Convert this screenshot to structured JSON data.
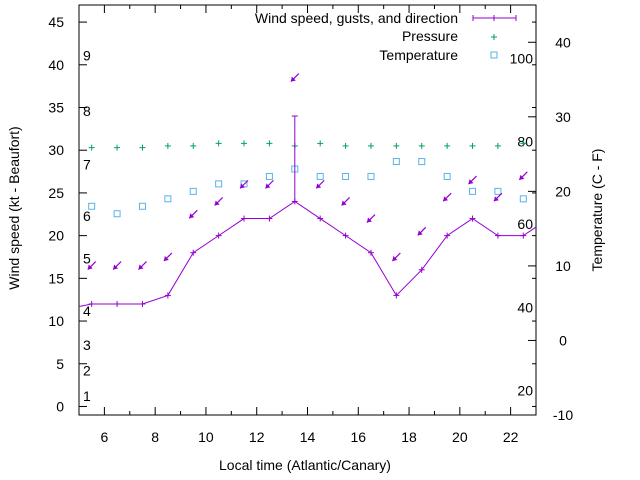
{
  "chart_data": {
    "type": "line",
    "xlabel": "Local time (Atlantic/Canary)",
    "ylabel": "Wind speed (kt - Beaufort)",
    "y2label": "Temperature (C - F)",
    "xlim": [
      5,
      23
    ],
    "ylim": [
      -1,
      47
    ],
    "y2lim": [
      -10,
      45
    ],
    "x_ticks": [
      6,
      8,
      10,
      12,
      14,
      16,
      18,
      20,
      22
    ],
    "y_ticks": [
      0,
      5,
      10,
      15,
      20,
      25,
      30,
      35,
      40,
      45
    ],
    "y2_ticks": [
      -10,
      0,
      10,
      20,
      30,
      40
    ],
    "beaufort_labels": [
      {
        "label": "1",
        "y": 1.2
      },
      {
        "label": "2",
        "y": 4.2
      },
      {
        "label": "3",
        "y": 7.2
      },
      {
        "label": "4",
        "y": 11.2
      },
      {
        "label": "5",
        "y": 17.3
      },
      {
        "label": "6",
        "y": 22.3
      },
      {
        "label": "7",
        "y": 28.3
      },
      {
        "label": "8",
        "y": 34.6
      },
      {
        "label": "9",
        "y": 41.1
      }
    ],
    "fahrenheit_labels": [
      {
        "label": "20",
        "y2": -6.7
      },
      {
        "label": "40",
        "y2": 4.4
      },
      {
        "label": "60",
        "y2": 15.6
      },
      {
        "label": "80",
        "y2": 26.7
      },
      {
        "label": "100",
        "y2": 37.8
      }
    ],
    "legend_position": "top-right",
    "series": [
      {
        "name": "Wind speed, gusts, and direction",
        "color": "#9400d3",
        "x": [
          5,
          5.5,
          6.5,
          7.5,
          8.5,
          9.5,
          10.5,
          11.5,
          12.5,
          13.5,
          14.5,
          15.5,
          16.5,
          17.5,
          18.5,
          19.5,
          20.5,
          21.5,
          22.5,
          23
        ],
        "y": [
          11.7,
          12,
          12,
          12,
          13,
          18,
          20,
          22,
          22,
          24,
          22,
          20,
          18,
          13,
          16,
          20,
          22,
          20,
          20,
          21
        ],
        "gusts": [
          {
            "x": 13.5,
            "y": 34
          }
        ],
        "direction_arrows": [
          {
            "x": 5.5,
            "y": 16.5
          },
          {
            "x": 6.5,
            "y": 16.5
          },
          {
            "x": 7.5,
            "y": 16.5
          },
          {
            "x": 8.5,
            "y": 17.5
          },
          {
            "x": 9.5,
            "y": 22.5
          },
          {
            "x": 10.5,
            "y": 24
          },
          {
            "x": 11.5,
            "y": 26
          },
          {
            "x": 12.5,
            "y": 26
          },
          {
            "x": 13.5,
            "y": 38.5
          },
          {
            "x": 14.5,
            "y": 26
          },
          {
            "x": 15.5,
            "y": 24
          },
          {
            "x": 16.5,
            "y": 22
          },
          {
            "x": 17.5,
            "y": 17.5
          },
          {
            "x": 18.5,
            "y": 20.5
          },
          {
            "x": 19.5,
            "y": 24.5
          },
          {
            "x": 20.5,
            "y": 26.5
          },
          {
            "x": 21.5,
            "y": 24.5
          },
          {
            "x": 22.5,
            "y": 27
          }
        ]
      },
      {
        "name": "Pressure",
        "color": "#009e73",
        "x": [
          5.5,
          6.5,
          7.5,
          8.5,
          9.5,
          10.5,
          11.5,
          12.5,
          13.5,
          14.5,
          15.5,
          16.5,
          17.5,
          18.5,
          19.5,
          20.5,
          21.5,
          22.5
        ],
        "y": [
          30.3,
          30.3,
          30.3,
          30.5,
          30.5,
          30.8,
          30.8,
          30.8,
          30.5,
          30.8,
          30.5,
          30.5,
          30.5,
          30.5,
          30.5,
          30.5,
          30.5,
          30.8
        ]
      },
      {
        "name": "Temperature",
        "color": "#56b4e9",
        "x": [
          5.5,
          6.5,
          7.5,
          8.5,
          9.5,
          10.5,
          11.5,
          12.5,
          13.5,
          14.5,
          15.5,
          16.5,
          17.5,
          18.5,
          19.5,
          20.5,
          21.5,
          22.5
        ],
        "y2": [
          18,
          17,
          18,
          19,
          20,
          21,
          21,
          22,
          23,
          22,
          22,
          22,
          24,
          24,
          22,
          20,
          20,
          19
        ]
      }
    ]
  }
}
